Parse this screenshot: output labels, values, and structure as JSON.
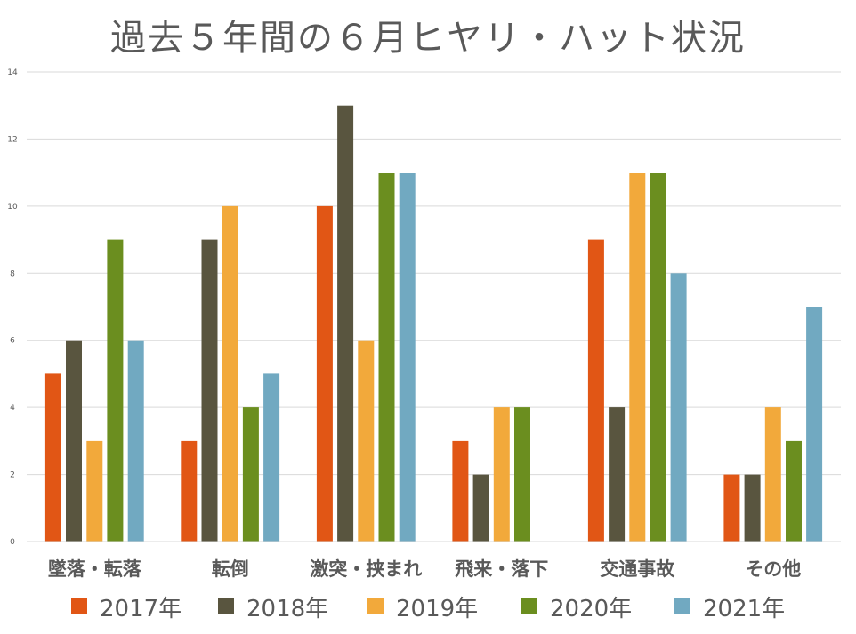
{
  "chart_data": {
    "type": "bar",
    "title": "過去５年間の６月ヒヤリ・ハット状況",
    "xlabel": "",
    "ylabel": "",
    "categories": [
      "墜落・転落",
      "転倒",
      "激突・挟まれ",
      "飛来・落下",
      "交通事故",
      "その他"
    ],
    "series": [
      {
        "name": "2017年",
        "color": "#E15615",
        "values": [
          5,
          3,
          10,
          3,
          9,
          2
        ]
      },
      {
        "name": "2018年",
        "color": "#59553F",
        "values": [
          6,
          9,
          13,
          2,
          4,
          2
        ]
      },
      {
        "name": "2019年",
        "color": "#F2A93B",
        "values": [
          3,
          10,
          6,
          4,
          11,
          4
        ]
      },
      {
        "name": "2020年",
        "color": "#6B8E1F",
        "values": [
          9,
          4,
          11,
          4,
          11,
          3
        ]
      },
      {
        "name": "2021年",
        "color": "#71A9C1",
        "values": [
          6,
          5,
          11,
          0,
          8,
          7
        ]
      }
    ],
    "ylim": [
      0,
      14
    ],
    "yticks": [
      0,
      2,
      4,
      6,
      8,
      10,
      12,
      14
    ],
    "grid": true,
    "legend_position": "bottom"
  }
}
